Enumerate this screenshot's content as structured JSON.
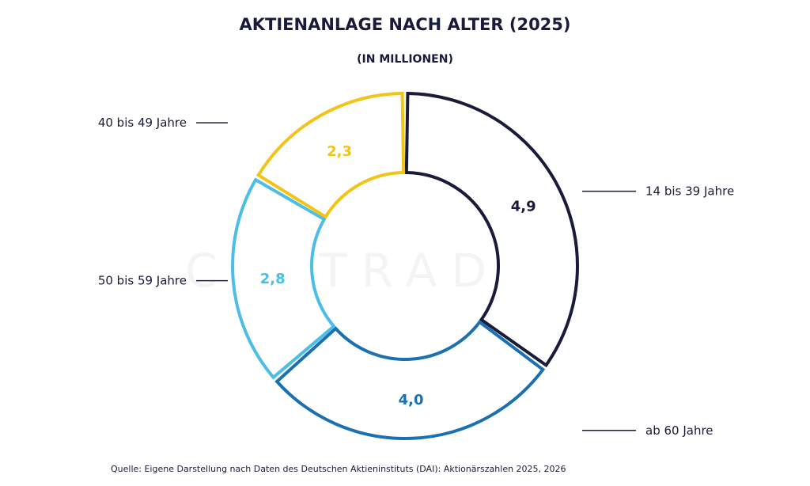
{
  "chart_data": {
    "type": "pie",
    "title": "AKTIENANLAGE NACH ALTER (2025)",
    "subtitle": "(IN MILLIONEN)",
    "categories": [
      "14 bis 39 Jahre",
      "ab 60 Jahre",
      "50 bis 59 Jahre",
      "40 bis 49 Jahre"
    ],
    "values": [
      4.9,
      4.0,
      2.8,
      2.3
    ],
    "value_labels": [
      "4,9",
      "4,0",
      "2,8",
      "2,3"
    ],
    "colors": [
      "#1a1b3a",
      "#1a70b0",
      "#4cbde6",
      "#f2c416"
    ],
    "donut": true,
    "source": "Quelle: Eigene Darstellung nach Daten des Deutschen Aktieninstituts (DAI): Aktionärszahlen 2025, 2026"
  },
  "watermark": "CAPTRADER"
}
